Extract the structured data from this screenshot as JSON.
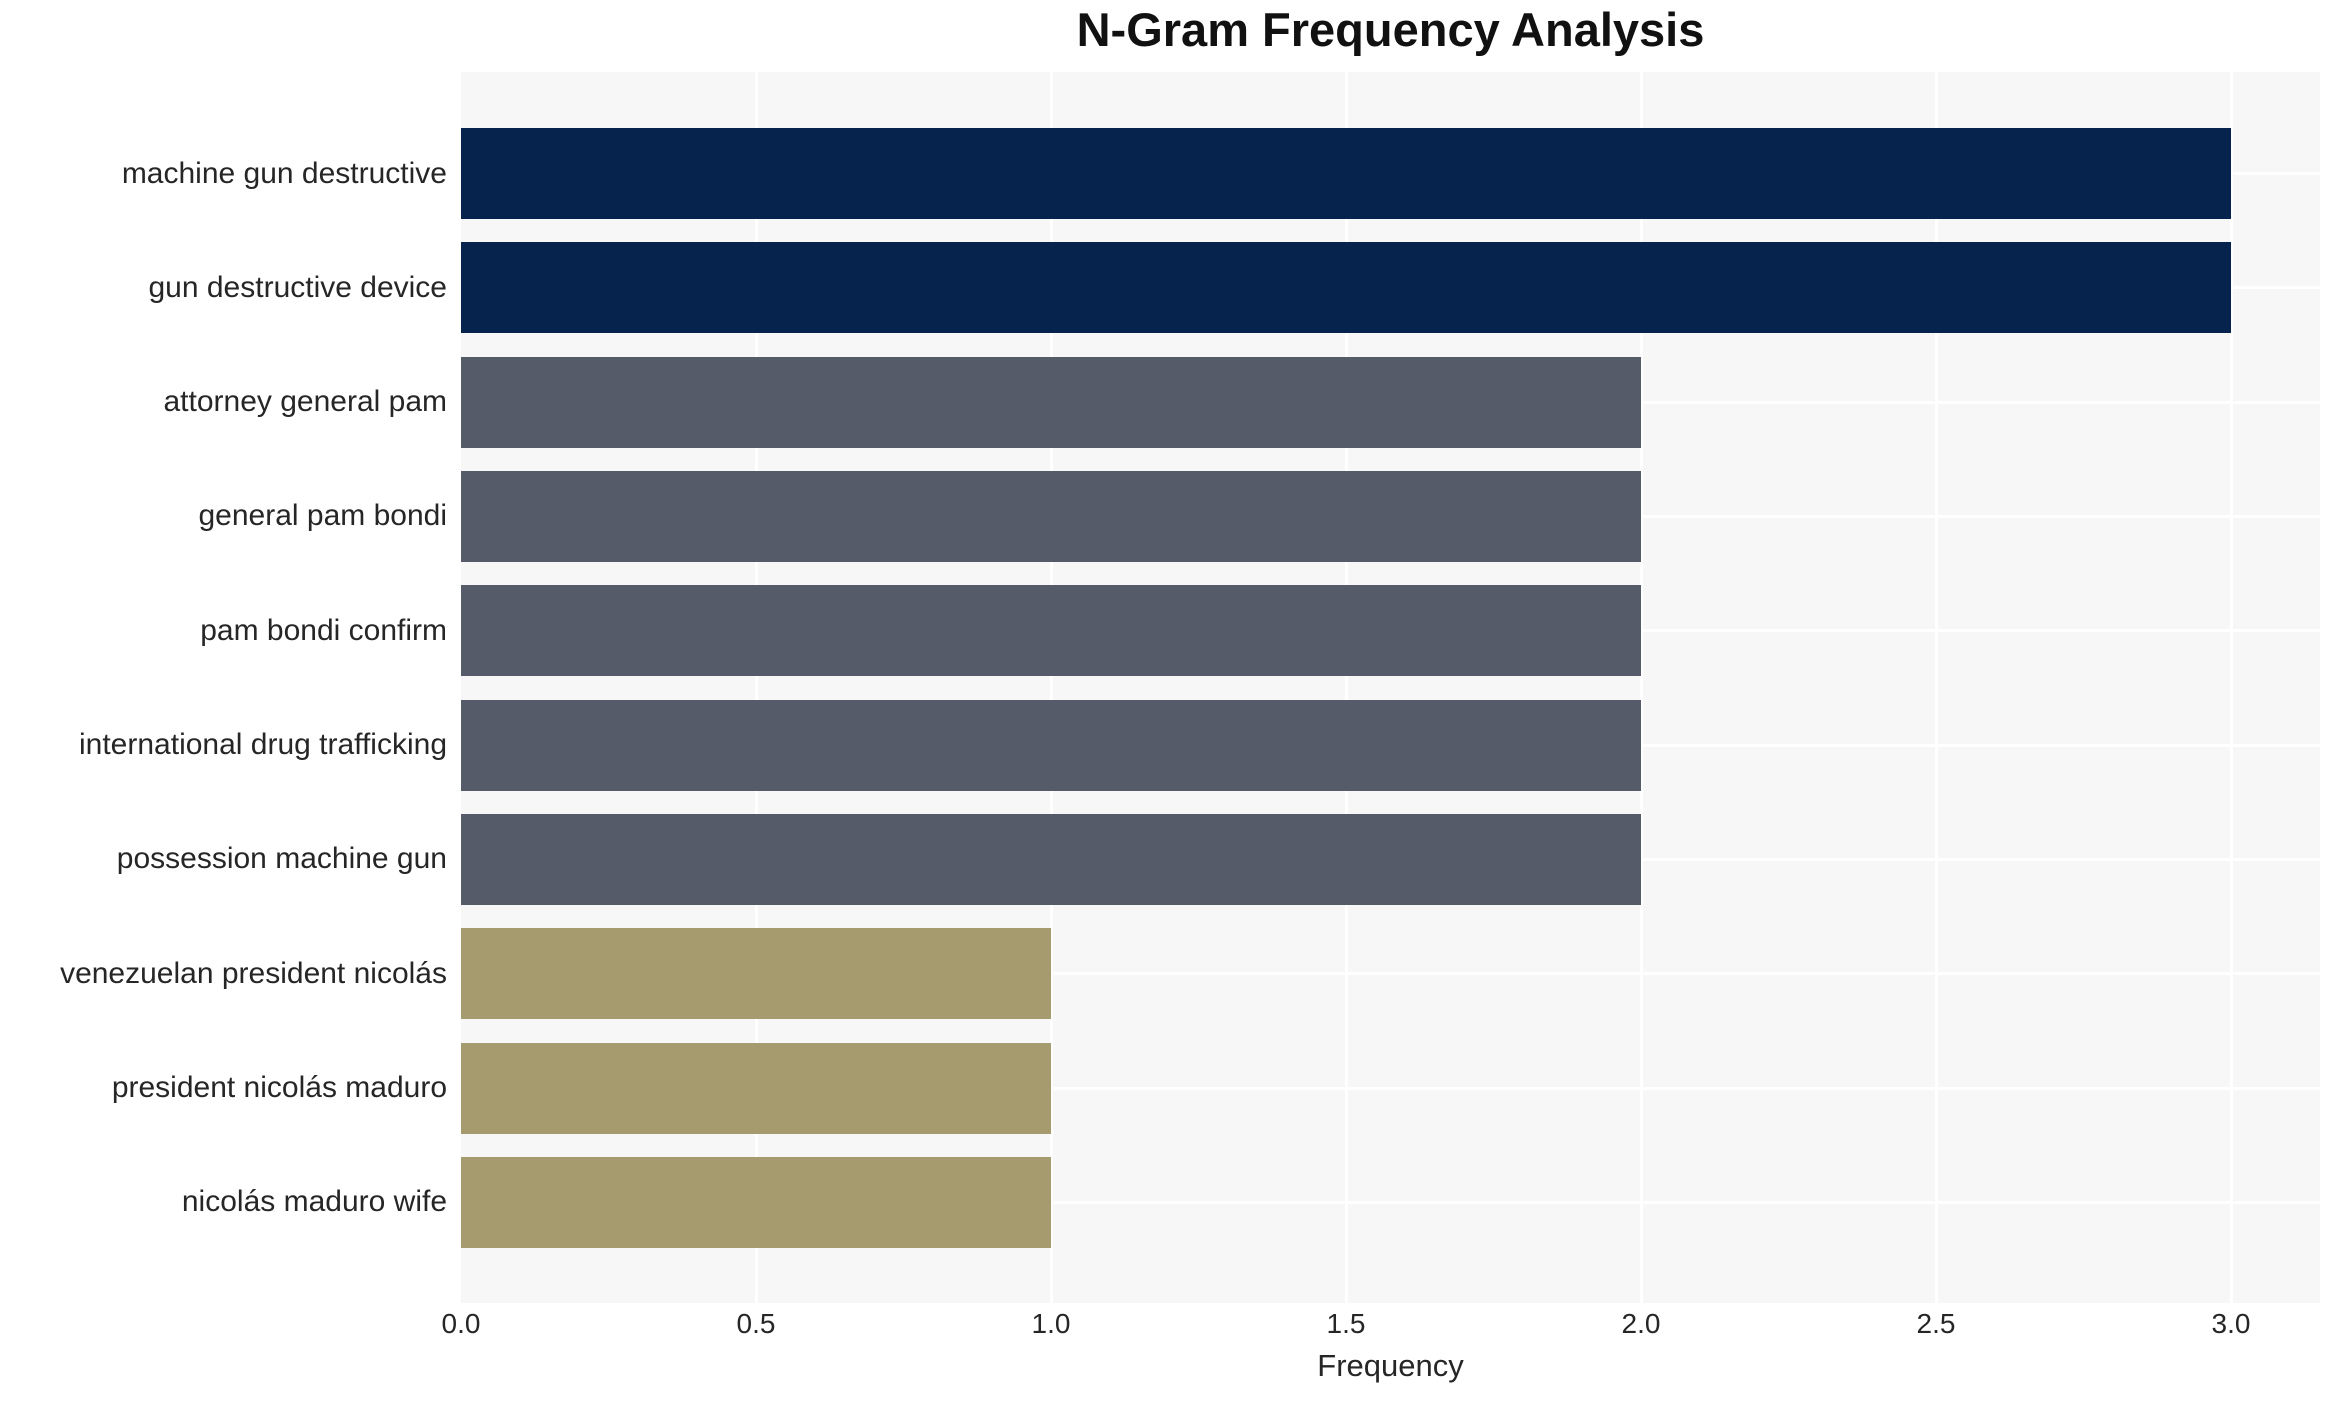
{
  "chart_data": {
    "type": "bar",
    "orientation": "horizontal",
    "title": "N-Gram Frequency Analysis",
    "xlabel": "Frequency",
    "ylabel": "",
    "categories": [
      "machine gun destructive",
      "gun destructive device",
      "attorney general pam",
      "general pam bondi",
      "pam bondi confirm",
      "international drug trafficking",
      "possession machine gun",
      "venezuelan president nicolás",
      "president nicolás maduro",
      "nicolás maduro wife"
    ],
    "values": [
      3,
      3,
      2,
      2,
      2,
      2,
      2,
      1,
      1,
      1
    ],
    "bar_colors": [
      "#05234d",
      "#05234d",
      "#555b68",
      "#555b68",
      "#555b68",
      "#555b68",
      "#555b68",
      "#a59b6e",
      "#a59b6e",
      "#a59b6e"
    ],
    "x_tick_labels": [
      "0.0",
      "0.5",
      "1.0",
      "1.5",
      "2.0",
      "2.5",
      "3.0"
    ],
    "x_ticks": [
      0.0,
      0.5,
      1.0,
      1.5,
      2.0,
      2.5,
      3.0
    ],
    "xlim": [
      0,
      3.15
    ],
    "grid": true,
    "legend": false,
    "plot_background": "#f7f7f7",
    "grid_color": "#ffffff",
    "color_legend": {
      "frequency_3": "#05234d",
      "frequency_2": "#555b68",
      "frequency_1": "#a59b6e"
    }
  }
}
